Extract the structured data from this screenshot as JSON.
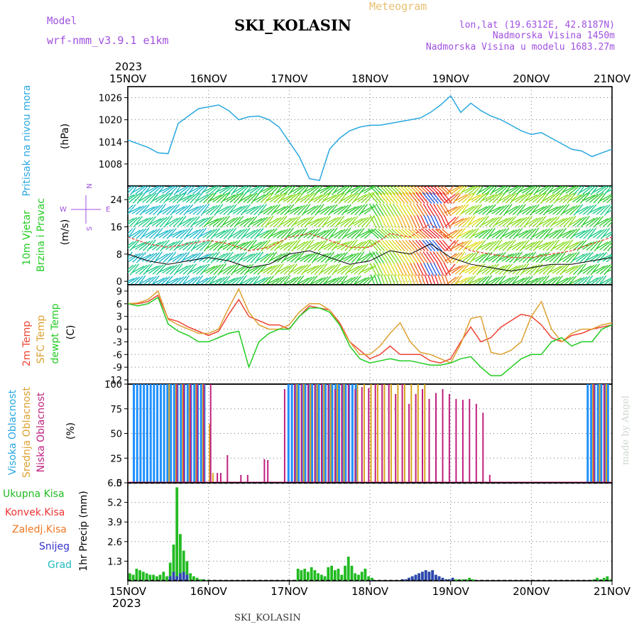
{
  "header": {
    "model_label": "Model",
    "model_name": "wrf-nmm_v3.9.1 e1km",
    "station": "SKI_KOLASIN",
    "product": "Meteogram",
    "coords": "lon,lat (19.6312E, 42.8187N)",
    "elevation": "Nadmorska Visina 1450m",
    "model_elevation": "Nadmorska Visina u modelu 1683.27m"
  },
  "footer": {
    "station": "SKI_KOLASIN",
    "watermark": "made by Angel"
  },
  "colors": {
    "pressure": "#29a8e0",
    "wind_speed": "#000000",
    "wind_gust": "#e8402a",
    "temp_2m": "#ee4433",
    "temp_sfc": "#dda030",
    "temp_dewpt": "#22cc22",
    "cloud_high": "#1e90ff",
    "cloud_mid": "#daa520",
    "cloud_low": "#c02080",
    "precip_total": "#22bb22",
    "precip_conv": "#ee3333",
    "precip_frz": "#ee7722",
    "precip_snow": "#3333cc",
    "precip_grad": "#22bbbb"
  },
  "chart_data": [
    {
      "type": "line",
      "ylabel": "(hPa)",
      "side_label": "Pritisak na nivou mora",
      "ylim": [
        1002,
        1029
      ],
      "yticks": [
        1008,
        1014,
        1020,
        1026
      ],
      "x_hours": [
        0,
        3,
        6,
        9,
        12,
        15,
        18,
        21,
        24,
        27,
        30,
        33,
        36,
        39,
        42,
        45,
        48,
        51,
        54,
        57,
        60,
        63,
        66,
        69,
        72,
        75,
        78,
        81,
        84,
        87,
        90,
        93,
        96,
        99,
        102,
        105,
        108,
        111,
        114,
        117,
        120,
        123,
        126,
        129,
        132,
        135,
        138,
        141,
        144
      ],
      "series": [
        {
          "values": [
            1014.5,
            1013.5,
            1012.5,
            1011,
            1010.8,
            1019,
            1021,
            1023,
            1023.5,
            1024,
            1022.5,
            1020,
            1020.8,
            1021,
            1020,
            1018,
            1014,
            1010,
            1004,
            1003.5,
            1012,
            1015,
            1017,
            1018,
            1018.5,
            1018.5,
            1019,
            1019.5,
            1020,
            1020.5,
            1022,
            1024,
            1026.5,
            1022,
            1024.5,
            1022.5,
            1021,
            1020,
            1018.5,
            1017,
            1016,
            1016.5,
            1015,
            1013.5,
            1012,
            1011.5,
            1010,
            1011,
            1012
          ]
        }
      ]
    },
    {
      "type": "line",
      "ylabel": "(m/s)",
      "side_label": [
        "10m Vjetar",
        "Brzina i Pravac"
      ],
      "compass": {
        "n": "N",
        "w": "W",
        "e": "E",
        "s": "S"
      },
      "ylim": [
        -1,
        28
      ],
      "yticks": [
        0,
        8,
        16,
        24
      ],
      "x_hours": [
        0,
        6,
        12,
        18,
        24,
        30,
        36,
        42,
        48,
        54,
        60,
        66,
        72,
        78,
        84,
        90,
        96,
        102,
        108,
        114,
        120,
        126,
        132,
        138,
        144
      ],
      "series": [
        {
          "key": "speed",
          "values": [
            8,
            6,
            5,
            6,
            7,
            6,
            4,
            5,
            8,
            9,
            7,
            5,
            6,
            9,
            8,
            11,
            7,
            5,
            4,
            3,
            4,
            5,
            5,
            6,
            7
          ]
        },
        {
          "key": "gust",
          "values": [
            13,
            11,
            10,
            11,
            12,
            11,
            9,
            10,
            13,
            14,
            12,
            10,
            10,
            14,
            13,
            17,
            12,
            9,
            8,
            7,
            7,
            8,
            9,
            11,
            13
          ]
        }
      ],
      "field_speed": [
        5,
        5,
        6,
        6,
        7,
        8,
        9,
        10,
        11,
        11,
        12,
        12,
        10,
        14,
        18,
        25,
        22,
        13,
        12,
        12,
        12,
        11,
        10,
        9,
        8
      ]
    },
    {
      "type": "line",
      "ylabel": "(C)",
      "side_label": [
        "2m Temp",
        "SFC Temp",
        "dewpt Temp"
      ],
      "ylim": [
        -13,
        10.5
      ],
      "yticks": [
        -12,
        -9,
        -6,
        -3,
        0,
        3,
        6,
        9
      ],
      "x_hours": [
        0,
        3,
        6,
        9,
        12,
        15,
        18,
        21,
        24,
        27,
        30,
        33,
        36,
        39,
        42,
        45,
        48,
        51,
        54,
        57,
        60,
        63,
        66,
        69,
        72,
        75,
        78,
        81,
        84,
        87,
        90,
        93,
        96,
        99,
        102,
        105,
        108,
        111,
        114,
        117,
        120,
        123,
        126,
        129,
        132,
        135,
        138,
        141,
        144
      ],
      "series": [
        {
          "key": "t2m",
          "name": "2m Temp",
          "values": [
            6,
            6,
            6.5,
            8,
            2.5,
            1.8,
            0.5,
            -0.5,
            -1.5,
            -0.5,
            3.5,
            7,
            3,
            2,
            1,
            1,
            0,
            3,
            5.5,
            5,
            4.5,
            1.5,
            -3,
            -5,
            -7,
            -6,
            -4,
            -6,
            -6,
            -6,
            -7.5,
            -8,
            -7,
            -3,
            0.5,
            -3,
            -2,
            0.5,
            2,
            3.5,
            3,
            1,
            -2,
            -3,
            -1.5,
            -1,
            0,
            0.5,
            1
          ]
        },
        {
          "key": "tsfc",
          "name": "SFC Temp",
          "values": [
            6,
            6.2,
            7,
            9,
            2.3,
            1,
            0,
            -1,
            -1,
            0,
            5,
            9.5,
            4,
            1,
            0,
            0,
            1,
            4,
            6,
            6,
            4.5,
            1,
            -3,
            -6,
            -6,
            -4,
            -1,
            1.5,
            -3,
            -5.5,
            -6,
            -7,
            -8,
            -3.5,
            2.5,
            3,
            -5.5,
            -6,
            -5,
            -3,
            3,
            6.5,
            0,
            -3,
            -1,
            0,
            0,
            1,
            1.5
          ]
        },
        {
          "key": "dew",
          "name": "dewpt Temp",
          "values": [
            6,
            5.5,
            6,
            7.5,
            1.2,
            -0.5,
            -1.5,
            -3,
            -3,
            -2,
            -1,
            -0.5,
            -9,
            -3,
            -1,
            0,
            0,
            3,
            5,
            5,
            4,
            1,
            -4,
            -7,
            -8,
            -7.5,
            -7,
            -7.5,
            -7.5,
            -8,
            -8.5,
            -8.5,
            -8,
            -7,
            -6.5,
            -9,
            -11,
            -11,
            -9,
            -7,
            -6,
            -6,
            -3,
            -2,
            -4,
            -3,
            -3,
            0,
            1
          ]
        }
      ]
    },
    {
      "type": "bar",
      "ylabel": "(%)",
      "side_label": [
        "Visoka Oblacnost",
        "Srednja Oblacnost",
        "Niska Oblacnost"
      ],
      "ylim": [
        0,
        100
      ],
      "yticks": [
        0,
        25,
        50,
        75,
        100
      ],
      "series": [
        {
          "key": "high",
          "name": "Visoka Oblacnost",
          "h": [
            2,
            3,
            4,
            5,
            6,
            7,
            8,
            9,
            10,
            11,
            12,
            13,
            14,
            15,
            16,
            17,
            18,
            19,
            20,
            21,
            22,
            23,
            48,
            49,
            50,
            51,
            52,
            53,
            54,
            55,
            56,
            57,
            58,
            59,
            60,
            61,
            62,
            63,
            64,
            65,
            66,
            67,
            68,
            137,
            138,
            139,
            140,
            141,
            142,
            143
          ],
          "v": [
            100,
            100,
            100,
            100,
            100,
            100,
            100,
            100,
            100,
            100,
            100,
            100,
            100,
            100,
            100,
            100,
            100,
            100,
            100,
            100,
            100,
            100,
            100,
            100,
            100,
            100,
            100,
            100,
            100,
            100,
            100,
            100,
            100,
            100,
            100,
            100,
            100,
            100,
            100,
            100,
            100,
            100,
            100,
            100,
            100,
            100,
            100,
            100,
            100,
            100
          ]
        },
        {
          "key": "mid",
          "name": "Srednja Oblacnost",
          "h": [
            12,
            14,
            16,
            18,
            20,
            22,
            24,
            25,
            50,
            52,
            54,
            56,
            58,
            60,
            62,
            64,
            68,
            70,
            72,
            74,
            76,
            78,
            80,
            82,
            84,
            86,
            88,
            138,
            140,
            142
          ],
          "v": [
            100,
            100,
            100,
            100,
            100,
            100,
            60,
            10,
            100,
            100,
            100,
            100,
            100,
            100,
            100,
            100,
            100,
            100,
            100,
            100,
            100,
            100,
            100,
            100,
            100,
            100,
            100,
            100,
            100,
            100
          ]
        },
        {
          "key": "low",
          "name": "Niska Oblacnost",
          "h": [
            14,
            16,
            18,
            20,
            22,
            24,
            26,
            27,
            29,
            33,
            35,
            40,
            41,
            46,
            49,
            51,
            53,
            55,
            57,
            59,
            61,
            63,
            65,
            67,
            69,
            71,
            73,
            75,
            77,
            79,
            81,
            83,
            85,
            87,
            89,
            91,
            93,
            95,
            97,
            99,
            101,
            103,
            105,
            107,
            109,
            111,
            113,
            115,
            117,
            119,
            121,
            123,
            138,
            141
          ],
          "v": [
            100,
            100,
            100,
            100,
            100,
            100,
            10,
            10,
            28,
            8,
            8,
            24,
            23,
            95,
            100,
            100,
            100,
            100,
            100,
            100,
            95,
            100,
            100,
            95,
            97,
            96,
            100,
            100,
            100,
            90,
            100,
            80,
            90,
            95,
            85,
            91,
            95,
            90,
            85,
            84,
            85,
            80,
            71,
            8,
            0,
            0,
            0,
            0,
            0,
            0,
            0,
            0,
            100,
            100
          ]
        }
      ]
    },
    {
      "type": "bar",
      "ylabel": "1hr Precip (mm)",
      "legend": [
        "Ukupna Kisa",
        "Konvek.Kisa",
        "Zaledj.Kisa",
        "Snijeg",
        "Grad"
      ],
      "ylim": [
        0,
        6.5
      ],
      "yticks": [
        1.3,
        2.6,
        3.9,
        5.2,
        6.5
      ],
      "total": {
        "h": [
          0,
          1,
          2,
          3,
          4,
          5,
          6,
          7,
          8,
          9,
          10,
          11,
          12,
          13,
          14,
          15,
          16,
          17,
          18,
          19,
          20,
          21,
          22,
          23,
          50,
          51,
          52,
          53,
          54,
          55,
          56,
          57,
          58,
          59,
          60,
          61,
          62,
          63,
          64,
          65,
          66,
          67,
          68,
          69,
          70,
          71,
          72,
          81,
          82,
          83,
          84,
          85,
          86,
          87,
          88,
          89,
          90,
          91,
          92,
          93,
          94,
          95,
          96,
          97,
          98,
          99,
          100,
          101,
          102,
          138,
          139,
          140,
          141,
          142,
          143
        ],
        "v": [
          0.5,
          0.4,
          0.8,
          0.7,
          0.6,
          0.5,
          0.4,
          0.4,
          0.3,
          0.4,
          0.6,
          0.3,
          1.2,
          2.4,
          6.2,
          3.1,
          2.0,
          1.3,
          0.5,
          0.3,
          0.2,
          0.1,
          0.1,
          0.05,
          0.8,
          0.7,
          0.8,
          0.6,
          0.9,
          0.7,
          0.5,
          0.4,
          0.3,
          0.9,
          1.0,
          0.7,
          0.8,
          0.4,
          1.0,
          1.6,
          1.0,
          0.5,
          0.4,
          0.6,
          0.8,
          0.3,
          0.2,
          0.1,
          0.1,
          0.2,
          0.3,
          0.4,
          0.5,
          0.6,
          0.7,
          0.6,
          0.7,
          0.4,
          0.3,
          0.2,
          0.1,
          0.1,
          0.2,
          0.1,
          0.1,
          0.1,
          0.1,
          0.2,
          0.1,
          0.1,
          0.2,
          0.1,
          0.2,
          0.3,
          0.1
        ]
      },
      "snow": {
        "h": [
          12,
          13,
          14,
          15,
          16,
          17,
          72,
          81,
          82,
          83,
          84,
          85,
          86,
          87,
          88,
          89,
          90,
          91,
          92,
          93,
          94,
          95,
          96
        ],
        "v": [
          0.3,
          0.6,
          0.3,
          0.5,
          0.6,
          0.4,
          0.05,
          0.1,
          0.1,
          0.2,
          0.3,
          0.4,
          0.5,
          0.6,
          0.7,
          0.6,
          0.7,
          0.4,
          0.3,
          0.2,
          0.1,
          0.1,
          0.2
        ]
      }
    }
  ],
  "axis": {
    "days": [
      "15NOV",
      "16NOV",
      "17NOV",
      "18NOV",
      "19NOV",
      "20NOV",
      "21NOV"
    ],
    "year": "2023",
    "start_hour": 0,
    "end_hour": 144
  }
}
